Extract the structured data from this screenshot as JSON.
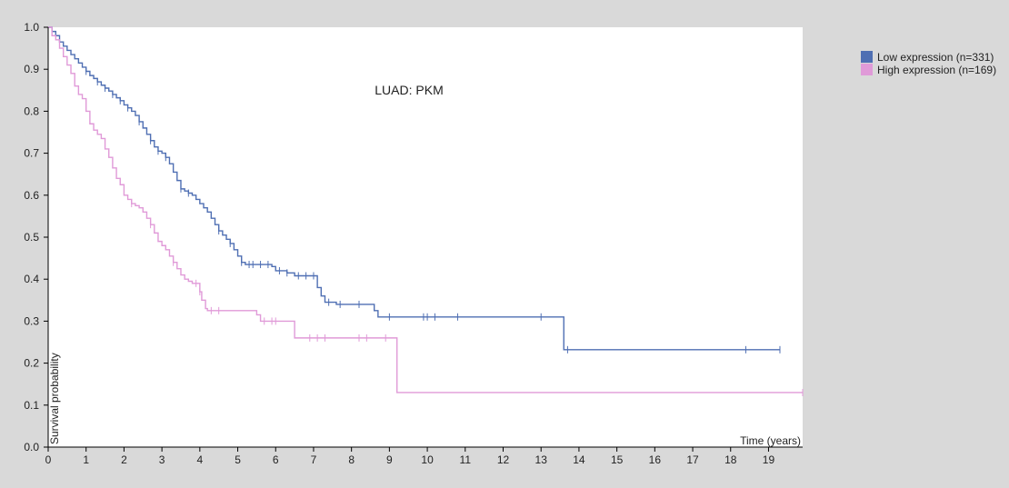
{
  "chart_data": {
    "type": "line",
    "step": true,
    "title": "LUAD: PKM",
    "xlabel": "Time (years)",
    "ylabel": "Survival probability",
    "xlim": [
      0,
      19.9
    ],
    "ylim": [
      0,
      1.0
    ],
    "xticks": [
      0,
      1,
      2,
      3,
      4,
      5,
      6,
      7,
      8,
      9,
      10,
      11,
      12,
      13,
      14,
      15,
      16,
      17,
      18,
      19
    ],
    "yticks": [
      0.0,
      0.1,
      0.2,
      0.3,
      0.4,
      0.5,
      0.6,
      0.7,
      0.8,
      0.9,
      1.0
    ],
    "ytick_labels": [
      "0.0",
      "0.1",
      "0.2",
      "0.3",
      "0.4",
      "0.5",
      "0.6",
      "0.7",
      "0.8",
      "0.9",
      "1.0"
    ],
    "legend_position": "top-right, outside plot",
    "background_color": "#d9d9d9",
    "plot_background": "#ffffff",
    "series": [
      {
        "name": "Low expression (n=331)",
        "color": "#4f6fb3",
        "points": [
          [
            0,
            1.0
          ],
          [
            0.1,
            0.99
          ],
          [
            0.2,
            0.98
          ],
          [
            0.3,
            0.965
          ],
          [
            0.4,
            0.955
          ],
          [
            0.5,
            0.945
          ],
          [
            0.6,
            0.935
          ],
          [
            0.7,
            0.925
          ],
          [
            0.8,
            0.915
          ],
          [
            0.9,
            0.905
          ],
          [
            1.0,
            0.895
          ],
          [
            1.1,
            0.885
          ],
          [
            1.2,
            0.878
          ],
          [
            1.3,
            0.87
          ],
          [
            1.4,
            0.862
          ],
          [
            1.5,
            0.855
          ],
          [
            1.6,
            0.848
          ],
          [
            1.7,
            0.84
          ],
          [
            1.8,
            0.832
          ],
          [
            1.9,
            0.825
          ],
          [
            2.0,
            0.815
          ],
          [
            2.1,
            0.808
          ],
          [
            2.2,
            0.8
          ],
          [
            2.3,
            0.79
          ],
          [
            2.4,
            0.775
          ],
          [
            2.5,
            0.76
          ],
          [
            2.6,
            0.745
          ],
          [
            2.7,
            0.73
          ],
          [
            2.8,
            0.715
          ],
          [
            2.9,
            0.705
          ],
          [
            3.0,
            0.7
          ],
          [
            3.1,
            0.69
          ],
          [
            3.2,
            0.675
          ],
          [
            3.3,
            0.655
          ],
          [
            3.4,
            0.635
          ],
          [
            3.5,
            0.615
          ],
          [
            3.6,
            0.61
          ],
          [
            3.7,
            0.605
          ],
          [
            3.8,
            0.6
          ],
          [
            3.9,
            0.59
          ],
          [
            4.0,
            0.58
          ],
          [
            4.1,
            0.57
          ],
          [
            4.2,
            0.56
          ],
          [
            4.3,
            0.545
          ],
          [
            4.4,
            0.53
          ],
          [
            4.5,
            0.515
          ],
          [
            4.6,
            0.505
          ],
          [
            4.7,
            0.495
          ],
          [
            4.8,
            0.485
          ],
          [
            4.9,
            0.47
          ],
          [
            5.0,
            0.455
          ],
          [
            5.1,
            0.44
          ],
          [
            5.2,
            0.435
          ],
          [
            5.9,
            0.43
          ],
          [
            6.0,
            0.42
          ],
          [
            6.3,
            0.415
          ],
          [
            6.5,
            0.408
          ],
          [
            7.0,
            0.408
          ],
          [
            7.1,
            0.38
          ],
          [
            7.2,
            0.36
          ],
          [
            7.3,
            0.345
          ],
          [
            7.6,
            0.34
          ],
          [
            8.6,
            0.325
          ],
          [
            8.7,
            0.31
          ],
          [
            13.5,
            0.31
          ],
          [
            13.6,
            0.232
          ],
          [
            19.3,
            0.232
          ]
        ],
        "censor_times": [
          1.0,
          1.3,
          1.5,
          1.7,
          1.9,
          2.1,
          2.4,
          2.7,
          2.9,
          3.1,
          3.5,
          3.7,
          4.5,
          4.8,
          5.1,
          5.3,
          5.4,
          5.6,
          5.8,
          6.1,
          6.3,
          6.6,
          6.8,
          7.0,
          7.4,
          7.7,
          8.2,
          9.0,
          9.9,
          10.0,
          10.2,
          10.8,
          13.0,
          13.7,
          18.4,
          19.3
        ]
      },
      {
        "name": "High expression (n=169)",
        "color": "#e09ad8",
        "points": [
          [
            0,
            1.0
          ],
          [
            0.1,
            0.98
          ],
          [
            0.2,
            0.97
          ],
          [
            0.3,
            0.95
          ],
          [
            0.4,
            0.93
          ],
          [
            0.5,
            0.91
          ],
          [
            0.6,
            0.89
          ],
          [
            0.7,
            0.86
          ],
          [
            0.8,
            0.84
          ],
          [
            0.9,
            0.83
          ],
          [
            1.0,
            0.8
          ],
          [
            1.1,
            0.77
          ],
          [
            1.2,
            0.755
          ],
          [
            1.3,
            0.745
          ],
          [
            1.4,
            0.735
          ],
          [
            1.5,
            0.71
          ],
          [
            1.6,
            0.69
          ],
          [
            1.7,
            0.665
          ],
          [
            1.8,
            0.64
          ],
          [
            1.9,
            0.625
          ],
          [
            2.0,
            0.6
          ],
          [
            2.1,
            0.59
          ],
          [
            2.2,
            0.58
          ],
          [
            2.3,
            0.575
          ],
          [
            2.4,
            0.57
          ],
          [
            2.5,
            0.56
          ],
          [
            2.6,
            0.545
          ],
          [
            2.7,
            0.53
          ],
          [
            2.8,
            0.51
          ],
          [
            2.9,
            0.49
          ],
          [
            3.0,
            0.48
          ],
          [
            3.1,
            0.47
          ],
          [
            3.2,
            0.455
          ],
          [
            3.3,
            0.44
          ],
          [
            3.4,
            0.425
          ],
          [
            3.5,
            0.41
          ],
          [
            3.6,
            0.4
          ],
          [
            3.7,
            0.395
          ],
          [
            3.8,
            0.39
          ],
          [
            3.9,
            0.39
          ],
          [
            4.0,
            0.37
          ],
          [
            4.05,
            0.35
          ],
          [
            4.15,
            0.33
          ],
          [
            4.2,
            0.325
          ],
          [
            5.5,
            0.315
          ],
          [
            5.6,
            0.3
          ],
          [
            6.5,
            0.26
          ],
          [
            9.1,
            0.26
          ],
          [
            9.2,
            0.13
          ],
          [
            19.9,
            0.13
          ]
        ],
        "censor_times": [
          2.2,
          2.7,
          3.3,
          3.9,
          4.0,
          4.3,
          4.5,
          5.7,
          5.9,
          6.0,
          6.9,
          7.1,
          7.3,
          8.2,
          8.4,
          8.9,
          19.9
        ]
      }
    ]
  }
}
